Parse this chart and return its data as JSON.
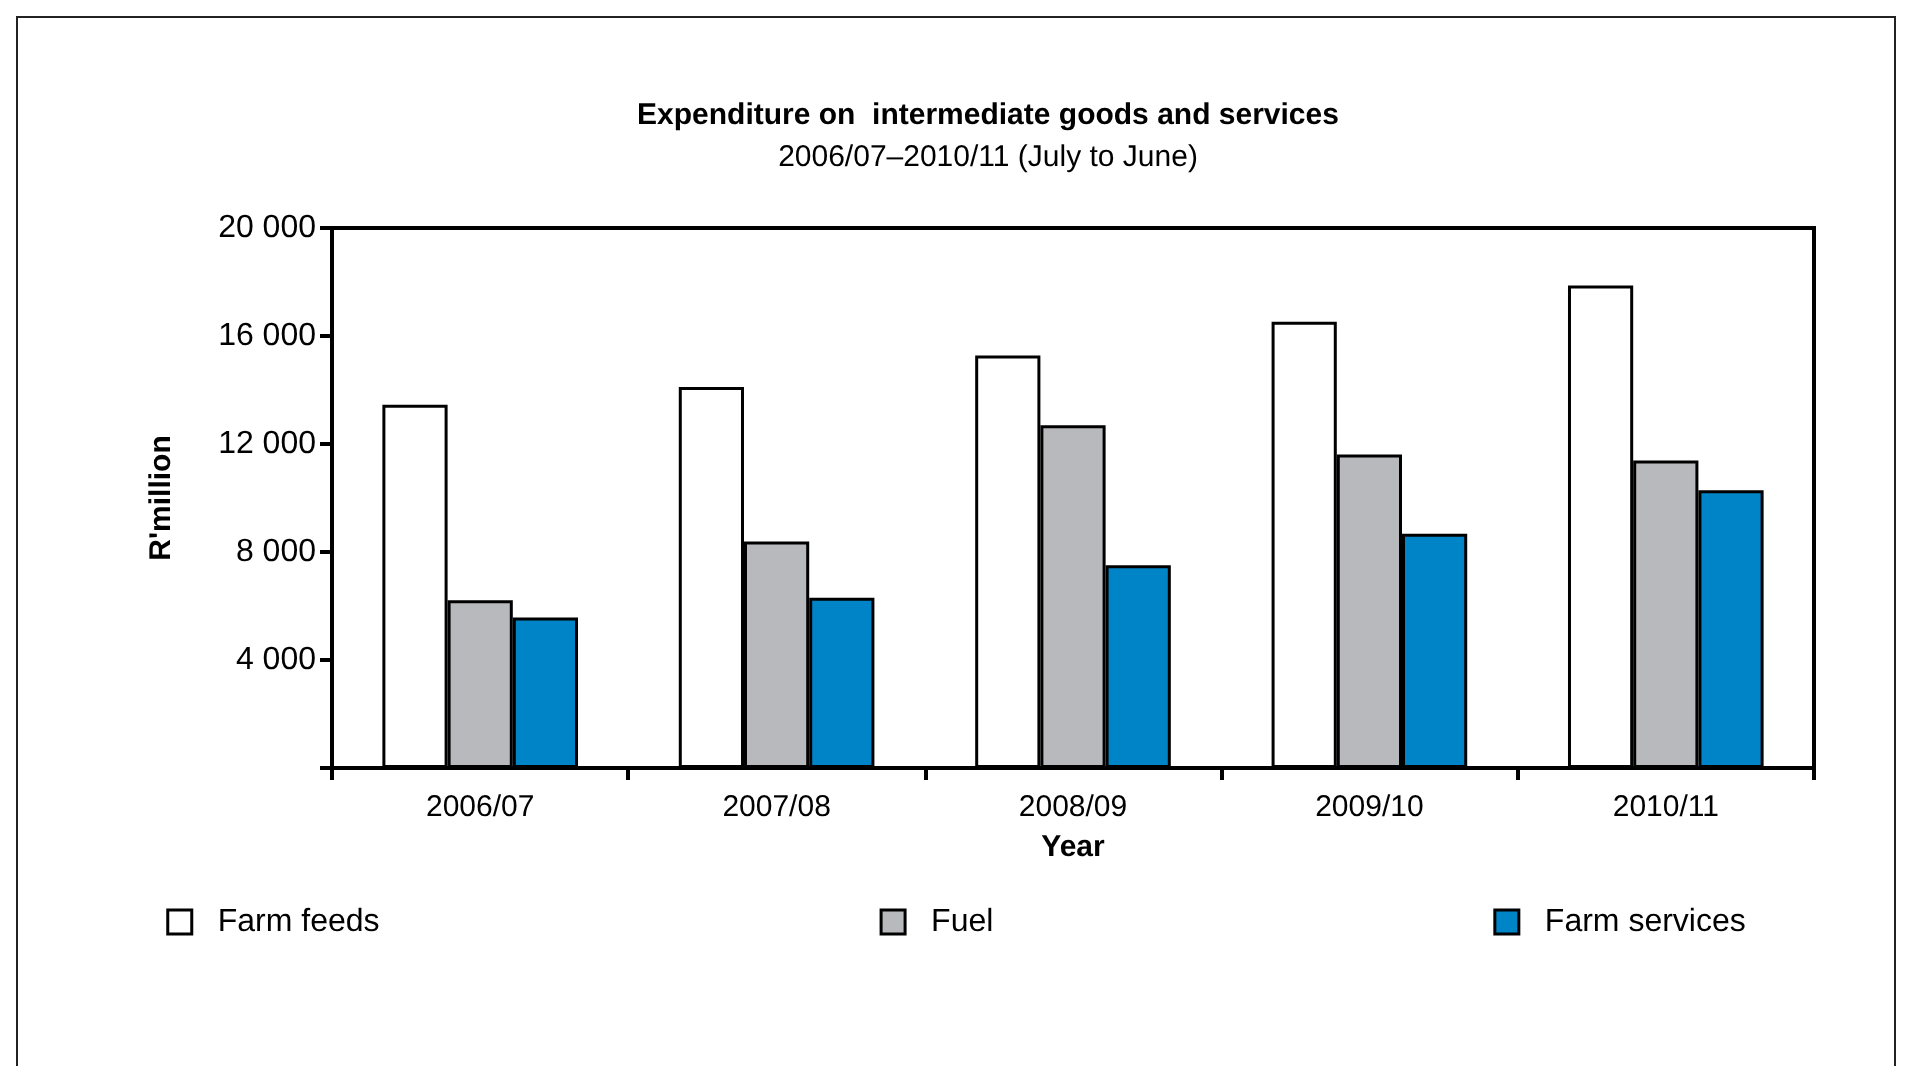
{
  "chart_data": {
    "type": "bar",
    "title": "Expenditure on  intermediate goods and services",
    "subtitle": "2006/07–2010/11 (July to June)",
    "xlabel": "Year",
    "ylabel": "R'million",
    "categories": [
      "2006/07",
      "2007/08",
      "2008/09",
      "2009/10",
      "2010/11"
    ],
    "series": [
      {
        "name": "Farm feeds",
        "color": "#ffffff",
        "values": [
          13450,
          14110,
          15280,
          16530,
          17870
        ]
      },
      {
        "name": "Fuel",
        "color": "#b8b9bc",
        "values": [
          6210,
          8390,
          12690,
          11610,
          11390
        ]
      },
      {
        "name": "Farm services",
        "color": "#0084c8",
        "values": [
          5570,
          6310,
          7510,
          8680,
          10290
        ]
      }
    ],
    "ylim": [
      0,
      20000
    ],
    "yticks": [
      {
        "value": 0,
        "label": null
      },
      {
        "value": 4000,
        "label": "4 000"
      },
      {
        "value": 8000,
        "label": "8 000"
      },
      {
        "value": 12000,
        "label": "12 000"
      },
      {
        "value": 16000,
        "label": "16 000"
      },
      {
        "value": 20000,
        "label": "20 000"
      }
    ],
    "legend": "bottom"
  }
}
